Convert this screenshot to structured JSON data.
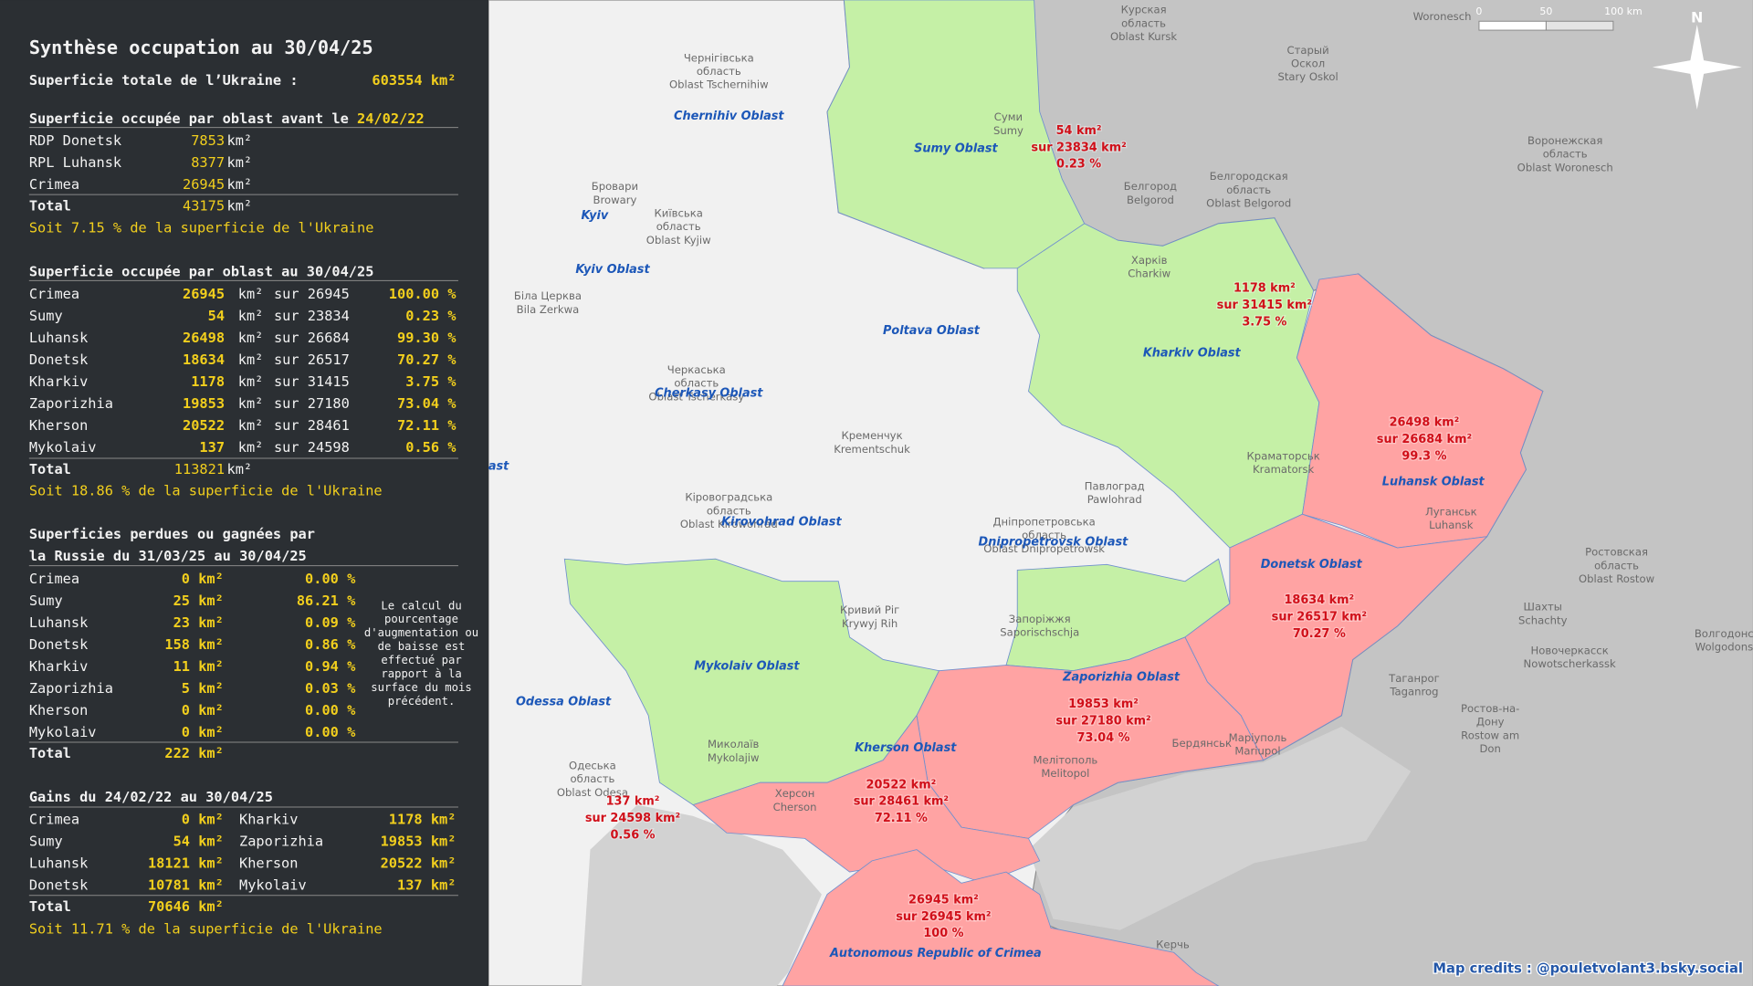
{
  "panel": {
    "title": "Synthèse occupation au 30/04/25",
    "total": {
      "label": "Superficie totale de l’Ukraine :",
      "value": "603554 km²"
    },
    "before": {
      "heading": "Superficie occupée par oblast avant le",
      "date": "24/02/22",
      "rows": [
        [
          "RDP Donetsk",
          "7853",
          "km²"
        ],
        [
          "RPL Luhansk",
          "8377",
          "km²"
        ],
        [
          "Crimea",
          "26945",
          "km²"
        ]
      ],
      "total": [
        "Total",
        "43175",
        "km²"
      ],
      "note": "Soit 7.15 % de la superficie de l'Ukraine"
    },
    "current": {
      "heading": "Superficie occupée par oblast au 30/04/25",
      "rows": [
        [
          "Crimea",
          "26945",
          "km²",
          "sur 26945",
          "100.00 %"
        ],
        [
          "Sumy",
          "54",
          "km²",
          "sur 23834",
          "0.23 %"
        ],
        [
          "Luhansk",
          "26498",
          "km²",
          "sur 26684",
          "99.30 %"
        ],
        [
          "Donetsk",
          "18634",
          "km²",
          "sur 26517",
          "70.27 %"
        ],
        [
          "Kharkiv",
          "1178",
          "km²",
          "sur 31415",
          "3.75 %"
        ],
        [
          "Zaporizhia",
          "19853",
          "km²",
          "sur 27180",
          "73.04 %"
        ],
        [
          "Kherson",
          "20522",
          "km²",
          "sur 28461",
          "72.11 %"
        ],
        [
          "Mykolaiv",
          "137",
          "km²",
          "sur 24598",
          "0.56 %"
        ]
      ],
      "total": [
        "Total",
        "113821",
        "km²"
      ],
      "note": "Soit 18.86 % de la superficie de l'Ukraine"
    },
    "changes": {
      "heading": [
        "Superficies perdues ou gagnées par",
        "la Russie du 31/03/25 au 30/04/25"
      ],
      "rows": [
        [
          "Crimea",
          "0 km²",
          "0.00 %"
        ],
        [
          "Sumy",
          "25 km²",
          "86.21 %"
        ],
        [
          "Luhansk",
          "23 km²",
          "0.09 %"
        ],
        [
          "Donetsk",
          "158 km²",
          "0.86 %"
        ],
        [
          "Kharkiv",
          "11 km²",
          "0.94 %"
        ],
        [
          "Zaporizhia",
          "5 km²",
          "0.03 %"
        ],
        [
          "Kherson",
          "0 km²",
          "0.00 %"
        ],
        [
          "Mykolaiv",
          "0 km²",
          "0.00 %"
        ]
      ],
      "total": [
        "Total",
        "222 km²"
      ],
      "remark": [
        "Le calcul du",
        "pourcentage",
        "d'augmentation ou",
        "de baisse est",
        "effectué par",
        "rapport à la",
        "surface du mois",
        "précédent."
      ]
    },
    "gains": {
      "heading": "Gains du 24/02/22 au 30/04/25",
      "rows": [
        [
          "Crimea",
          "0 km²",
          "Kharkiv",
          "1178 km²"
        ],
        [
          "Sumy",
          "54 km²",
          "Zaporizhia",
          "19853 km²"
        ],
        [
          "Luhansk",
          "18121 km²",
          "Kherson",
          "20522 km²"
        ],
        [
          "Donetsk",
          "10781 km²",
          "Mykolaiv",
          "137 km²"
        ]
      ],
      "total": [
        "Total",
        "70646 km²"
      ],
      "note": "Soit 11.71 % de la superficie de l'Ukraine"
    }
  },
  "map": {
    "oblasts": [
      "Chernihiv Oblast",
      "Sumy Oblast",
      "Kyiv",
      "Kyiv Oblast",
      "Poltava Oblast",
      "Kharkiv Oblast",
      "Cherkasy Oblast",
      "ast",
      "Luhansk Oblast",
      "Kirovohrad Oblast",
      "Dnipropetrovsk Oblast",
      "Donetsk Oblast",
      "Mykolaiv Oblast",
      "Zaporizhia Oblast",
      "Odessa Oblast",
      "Kherson Oblast",
      "Autonomous Republic of Crimea"
    ],
    "occupation": [
      [
        "54 km²",
        "sur 23834 km²",
        "0.23 %"
      ],
      [
        "1178 km²",
        "sur 31415 km²",
        "3.75 %"
      ],
      [
        "26498 km²",
        "sur 26684 km²",
        "99.3 %"
      ],
      [
        "18634 km²",
        "sur 26517 km²",
        "70.27 %"
      ],
      [
        "19853 km²",
        "sur 27180 km²",
        "73.04 %"
      ],
      [
        "20522 km²",
        "sur 28461 km²",
        "72.11 %"
      ],
      [
        "137 km²",
        "sur 24598 km²",
        "0.56 %"
      ],
      [
        "26945 km²",
        "sur 26945 km²",
        "100 %"
      ]
    ],
    "places": [
      [
        "Курская",
        "область",
        "Oblast Kursk"
      ],
      [
        "Старый",
        "Оскол",
        "Stary Oskol"
      ],
      [
        "Белгород",
        "Belgorod"
      ],
      [
        "Белгородская",
        "область",
        "Oblast Belgorod"
      ],
      [
        "Воронежская",
        "область",
        "Oblast Woronesch"
      ],
      [
        "Woronesch"
      ],
      [
        "Чернігівська",
        "область",
        "Oblast Tschernihiw"
      ],
      [
        "Бровари",
        "Browary"
      ],
      [
        "Київська",
        "область",
        "Oblast Kyjiw"
      ],
      [
        "Біла Церква",
        "Bila Zerkwa"
      ],
      [
        "Черкаська",
        "область",
        "Oblast Tscherkasy"
      ],
      [
        "Кременчук",
        "Krementschuk"
      ],
      [
        "Павлоград",
        "Pawlohrad"
      ],
      [
        "Краматорськ",
        "Kramatorsk"
      ],
      [
        "Луганськ",
        "Luhansk"
      ],
      [
        "Кіровоградська",
        "область",
        "Oblast Kirowohrad"
      ],
      [
        "Дніпропетровська",
        "область",
        "Oblast Dnipropetrowsk"
      ],
      [
        "Кривий Ріг",
        "Krywyj Rih"
      ],
      [
        "Запоріжжя",
        "Saporischschja"
      ],
      [
        "Маріуполь",
        "Mariupol"
      ],
      [
        "Мелітополь",
        "Melitopol"
      ],
      [
        "Бердянськ"
      ],
      [
        "Херсон",
        "Cherson"
      ],
      [
        "Миколаїв",
        "Mykolajiw"
      ],
      [
        "Одеська",
        "область",
        "Oblast Odesa"
      ],
      [
        "Ростовская",
        "область",
        "Oblast Rostow"
      ],
      [
        "Шахты",
        "Schachty"
      ],
      [
        "Новочеркасск",
        "Nowotscherkassk"
      ],
      [
        "Таганрог",
        "Taganrog"
      ],
      [
        "Ростов-на-",
        "Дону",
        "Rostow am",
        "Don"
      ],
      [
        "Волгодонск",
        "Wolgodonsk"
      ],
      [
        "Керчь"
      ],
      [
        "Суми",
        "Sumy"
      ],
      [
        "Харків",
        "Charkiw"
      ]
    ],
    "scale": [
      "0",
      "50",
      "100 km"
    ],
    "north": "N",
    "credits": "Map credits : @pouletvolant3.bsky.social"
  }
}
